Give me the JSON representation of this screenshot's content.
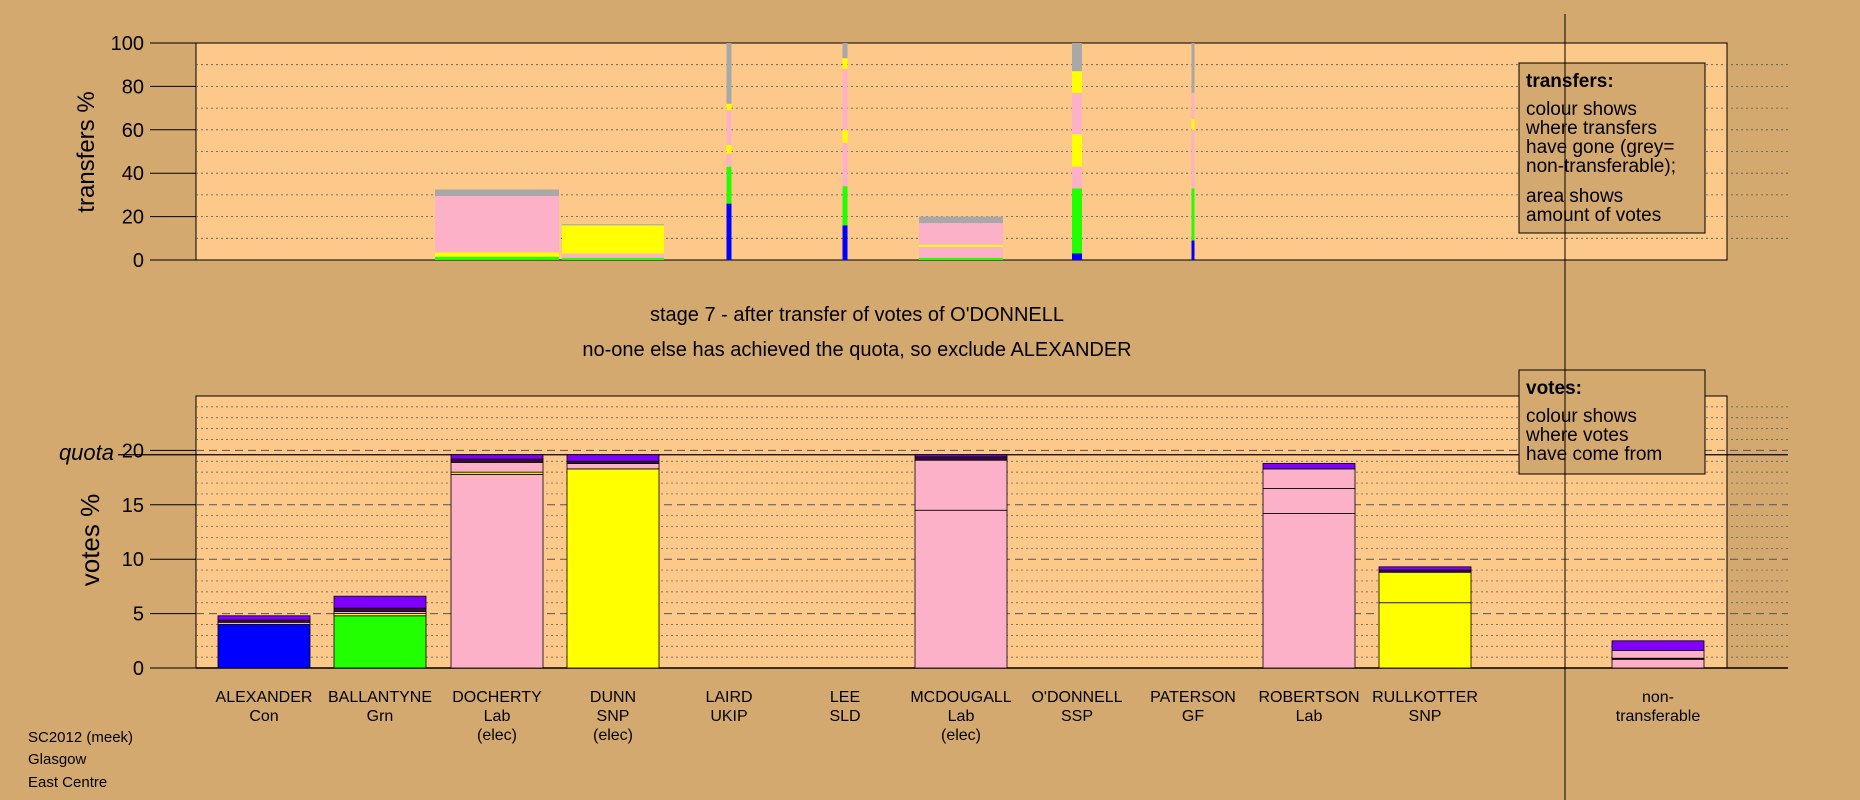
{
  "colors": {
    "page_bg": "#d4a96f",
    "plot_bg": "#fdc98a",
    "Con": "#0000ff",
    "Grn": "#22ff00",
    "Lab": "#fcb1c8",
    "SNP": "#ffff00",
    "other": "#7f00ff",
    "dark": "#3d0a3a",
    "non_transferable": "#a8a8a8"
  },
  "caption": {
    "line1": "stage 7 - after transfer of votes of O'DONNELL",
    "line2": "no-one else has achieved the quota, so exclude ALEXANDER"
  },
  "footer": {
    "line1": "SC2012 (meek)",
    "line2": "Glasgow",
    "line3": "East Centre"
  },
  "legend_transfers": {
    "title": "transfers:",
    "lines": [
      "colour shows",
      "where transfers",
      "have gone (grey=",
      "non-transferable);",
      "area shows",
      "amount of votes"
    ]
  },
  "legend_votes": {
    "title": "votes:",
    "lines": [
      "colour shows",
      "where votes",
      "have come from"
    ]
  },
  "chart_data": [
    {
      "type": "bar",
      "name": "transfers",
      "ylabel": "transfers %",
      "ylim": [
        0,
        100
      ],
      "yticks": [
        0,
        20,
        40,
        60,
        80,
        100
      ],
      "grid": true,
      "note": "stacked transfer bars; width of each bar proportional to amount of votes transferred",
      "bars": [
        {
          "candidate": "DOCHERTY",
          "segments": [
            [
              "Grn",
              1.5
            ],
            [
              "SNP",
              2
            ],
            [
              "Lab",
              26
            ],
            [
              "non_transferable",
              3
            ]
          ]
        },
        {
          "candidate": "DUNN",
          "segments": [
            [
              "Grn",
              1
            ],
            [
              "Lab",
              2
            ],
            [
              "SNP",
              13
            ],
            [
              "non_transferable",
              0.5
            ]
          ]
        },
        {
          "candidate": "LAIRD",
          "segments": [
            [
              "Con",
              26
            ],
            [
              "Grn",
              17
            ],
            [
              "Lab",
              6
            ],
            [
              "SNP",
              4
            ],
            [
              "Lab",
              16
            ],
            [
              "SNP",
              3
            ],
            [
              "non_transferable",
              28
            ]
          ]
        },
        {
          "candidate": "LEE",
          "segments": [
            [
              "Con",
              16
            ],
            [
              "Grn",
              18
            ],
            [
              "Lab",
              20
            ],
            [
              "SNP",
              6
            ],
            [
              "Lab",
              28
            ],
            [
              "SNP",
              5
            ],
            [
              "non_transferable",
              7
            ]
          ]
        },
        {
          "candidate": "MCDOUGALL",
          "segments": [
            [
              "Grn",
              1
            ],
            [
              "Lab",
              5
            ],
            [
              "SNP",
              1
            ],
            [
              "Lab",
              10
            ],
            [
              "non_transferable",
              3
            ]
          ]
        },
        {
          "candidate": "O'DONNELL",
          "segments": [
            [
              "Con",
              3
            ],
            [
              "Grn",
              30
            ],
            [
              "Lab",
              10
            ],
            [
              "SNP",
              15
            ],
            [
              "Lab",
              19
            ],
            [
              "SNP",
              10
            ],
            [
              "non_transferable",
              13
            ]
          ]
        },
        {
          "candidate": "PATERSON",
          "segments": [
            [
              "Con",
              9
            ],
            [
              "Grn",
              24
            ],
            [
              "Lab",
              27
            ],
            [
              "SNP",
              5
            ],
            [
              "Lab",
              12
            ],
            [
              "non_transferable",
              23
            ]
          ]
        }
      ]
    },
    {
      "type": "bar",
      "name": "votes",
      "ylabel": "votes %",
      "ylim": [
        0,
        25
      ],
      "yticks": [
        0,
        5,
        10,
        15,
        20
      ],
      "quota": 19.6,
      "quota_label": "quota",
      "grid": true,
      "categories": [
        {
          "name": "ALEXANDER",
          "party": "Con",
          "status": ""
        },
        {
          "name": "BALLANTYNE",
          "party": "Grn",
          "status": ""
        },
        {
          "name": "DOCHERTY",
          "party": "Lab",
          "status": "(elec)"
        },
        {
          "name": "DUNN",
          "party": "SNP",
          "status": "(elec)"
        },
        {
          "name": "LAIRD",
          "party": "UKIP",
          "status": ""
        },
        {
          "name": "LEE",
          "party": "SLD",
          "status": ""
        },
        {
          "name": "MCDOUGALL",
          "party": "Lab",
          "status": "(elec)"
        },
        {
          "name": "O'DONNELL",
          "party": "SSP",
          "status": ""
        },
        {
          "name": "PATERSON",
          "party": "GF",
          "status": ""
        },
        {
          "name": "ROBERTSON",
          "party": "Lab",
          "status": ""
        },
        {
          "name": "RULLKOTTER",
          "party": "SNP",
          "status": ""
        }
      ],
      "nontransferable_label": [
        "non-",
        "transferable"
      ],
      "bars": [
        {
          "candidate": "ALEXANDER",
          "segments": [
            [
              "Con",
              4.0
            ],
            [
              "Lab",
              0.2
            ],
            [
              "dark",
              0.2
            ],
            [
              "other",
              0.4
            ]
          ]
        },
        {
          "candidate": "BALLANTYNE",
          "segments": [
            [
              "Grn",
              4.8
            ],
            [
              "SNP",
              0.2
            ],
            [
              "Lab",
              0.2
            ],
            [
              "dark",
              0.3
            ],
            [
              "other",
              1.1
            ]
          ]
        },
        {
          "candidate": "DOCHERTY",
          "segments": [
            [
              "Lab",
              17.8
            ],
            [
              "SNP",
              0.2
            ],
            [
              "Lab",
              0.9
            ],
            [
              "dark",
              0.3
            ],
            [
              "other",
              0.4
            ]
          ]
        },
        {
          "candidate": "DUNN",
          "segments": [
            [
              "SNP",
              18.3
            ],
            [
              "Lab",
              0.5
            ],
            [
              "dark",
              0.2
            ],
            [
              "other",
              0.6
            ]
          ]
        },
        {
          "candidate": "LAIRD",
          "segments": []
        },
        {
          "candidate": "LEE",
          "segments": []
        },
        {
          "candidate": "MCDOUGALL",
          "segments": [
            [
              "Lab",
              14.5
            ],
            [
              "Lab",
              4.6
            ],
            [
              "dark",
              0.3
            ],
            [
              "other",
              0.2
            ]
          ]
        },
        {
          "candidate": "O'DONNELL",
          "segments": []
        },
        {
          "candidate": "PATERSON",
          "segments": []
        },
        {
          "candidate": "ROBERTSON",
          "segments": [
            [
              "Lab",
              14.2
            ],
            [
              "Lab",
              2.3
            ],
            [
              "Lab",
              1.8
            ],
            [
              "other",
              0.5
            ]
          ]
        },
        {
          "candidate": "RULLKOTTER",
          "segments": [
            [
              "SNP",
              6.0
            ],
            [
              "SNP",
              2.8
            ],
            [
              "dark",
              0.2
            ],
            [
              "other",
              0.3
            ]
          ]
        }
      ],
      "nontransferable_bar": {
        "segments": [
          [
            "Lab",
            0.8
          ],
          [
            "dark",
            0.1
          ],
          [
            "Lab",
            0.7
          ],
          [
            "other",
            0.9
          ]
        ]
      }
    }
  ]
}
